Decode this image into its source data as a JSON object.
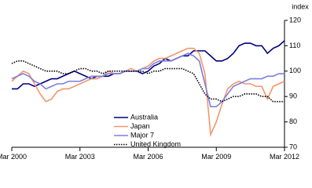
{
  "chart_data": {
    "type": "line",
    "ylabel": "index",
    "categories": [
      "Mar 2000",
      null,
      null,
      null,
      null,
      null,
      null,
      null,
      null,
      null,
      null,
      null,
      "Mar 2003",
      null,
      null,
      null,
      null,
      null,
      null,
      null,
      null,
      null,
      null,
      null,
      "Mar 2006",
      null,
      null,
      null,
      null,
      null,
      null,
      null,
      null,
      null,
      null,
      null,
      "Mar 2009",
      null,
      null,
      null,
      null,
      null,
      null,
      null,
      null,
      null,
      null,
      null,
      "Mar 2012"
    ],
    "series": [
      {
        "name": "Australia",
        "color": "#000080",
        "style": "solid",
        "values": [
          93,
          93,
          95,
          95,
          94,
          95,
          96,
          97,
          97,
          98,
          99,
          100,
          99,
          98,
          97,
          98,
          98,
          98,
          99,
          99,
          100,
          100,
          100,
          99,
          100,
          102,
          103,
          105,
          104,
          105,
          106,
          106,
          108,
          108,
          108,
          106,
          104,
          104,
          105,
          107,
          110,
          111,
          111,
          110,
          110,
          107,
          109,
          110,
          112
        ]
      },
      {
        "name": "Japan",
        "color": "#f4956a",
        "style": "solid",
        "values": [
          96,
          98,
          100,
          99,
          95,
          91,
          88,
          89,
          92,
          93,
          93,
          94,
          95,
          96,
          97,
          97,
          98,
          100,
          99,
          99,
          100,
          101,
          100,
          101,
          102,
          104,
          105,
          105,
          106,
          107,
          108,
          109,
          109,
          107,
          99,
          75,
          80,
          87,
          93,
          95,
          96,
          95,
          95,
          94,
          94,
          89,
          94,
          95,
          96
        ]
      },
      {
        "name": "Major 7",
        "color": "#7b7fe0",
        "style": "solid",
        "values": [
          97,
          98,
          99,
          98,
          96,
          95,
          93,
          94,
          95,
          95,
          96,
          96,
          96,
          97,
          98,
          98,
          98,
          99,
          99,
          99,
          100,
          100,
          100,
          101,
          101,
          103,
          104,
          104,
          104,
          105,
          106,
          107,
          106,
          104,
          95,
          86,
          86,
          88,
          91,
          94,
          95,
          96,
          97,
          97,
          97,
          98,
          98,
          99,
          99
        ]
      },
      {
        "name": "United Kingdom",
        "color": "#000000",
        "style": "dotted",
        "values": [
          103,
          104,
          104,
          103,
          102,
          101,
          100,
          100,
          100,
          99,
          99,
          100,
          101,
          101,
          100,
          100,
          99,
          100,
          100,
          100,
          100,
          100,
          100,
          100,
          99,
          100,
          100,
          101,
          101,
          101,
          101,
          100,
          99,
          95,
          91,
          89,
          89,
          88,
          89,
          90,
          90,
          91,
          91,
          91,
          90,
          90,
          88,
          88,
          88
        ]
      }
    ],
    "ylim": [
      70,
      120
    ],
    "yticks": [
      70,
      80,
      90,
      100,
      110,
      120
    ]
  }
}
